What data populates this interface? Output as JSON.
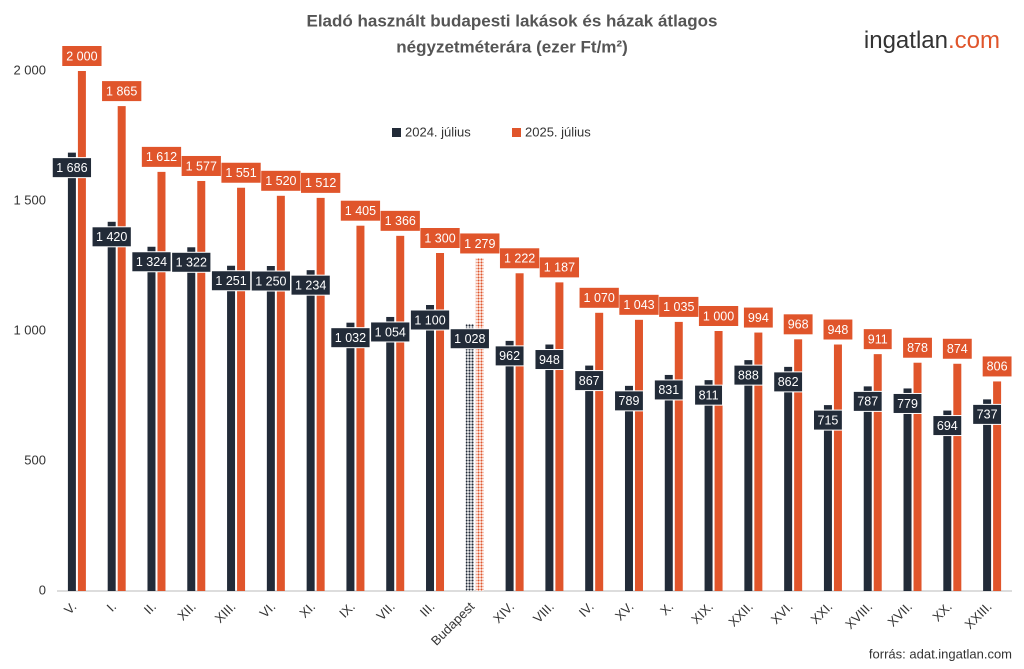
{
  "chart_data": {
    "type": "bar",
    "title": [
      "Eladó használt budapesti lakások és házak átlagos",
      "négyzetméterára (ezer Ft/m²)"
    ],
    "brand": [
      "ingatlan",
      ".com"
    ],
    "source": "forrás: adat.ingatlan.com",
    "categories": [
      "V.",
      "I.",
      "II.",
      "XII.",
      "XIII.",
      "VI.",
      "XI.",
      "IX.",
      "VII.",
      "III.",
      "Budapest",
      "XIV.",
      "VIII.",
      "IV.",
      "XV.",
      "X.",
      "XIX.",
      "XXII.",
      "XVI.",
      "XXI.",
      "XVIII.",
      "XVII.",
      "XX.",
      "XXIII."
    ],
    "pattern_category": "Budapest",
    "series": [
      {
        "name": "2024. július",
        "color": "#222b38",
        "values": [
          1686,
          1420,
          1324,
          1322,
          1251,
          1250,
          1234,
          1032,
          1054,
          1100,
          1028,
          962,
          948,
          867,
          789,
          831,
          811,
          888,
          862,
          715,
          787,
          779,
          694,
          737
        ],
        "value_labels": [
          "1 686",
          "1 420",
          "1 324",
          "1 322",
          "1 251",
          "1 250",
          "1 234",
          "1 032",
          "1 054",
          "1 100",
          "1 028",
          "962",
          "948",
          "867",
          "789",
          "831",
          "811",
          "888",
          "862",
          "715",
          "787",
          "779",
          "694",
          "737"
        ]
      },
      {
        "name": "2025. július",
        "color": "#e0552b",
        "values": [
          2000,
          1865,
          1612,
          1577,
          1551,
          1520,
          1512,
          1405,
          1366,
          1300,
          1279,
          1222,
          1187,
          1070,
          1043,
          1035,
          1000,
          994,
          968,
          948,
          911,
          878,
          874,
          806
        ],
        "value_labels": [
          "2 000",
          "1 865",
          "1 612",
          "1 577",
          "1 551",
          "1 520",
          "1 512",
          "1 405",
          "1 366",
          "1 300",
          "1 279",
          "1 222",
          "1 187",
          "1 070",
          "1 043",
          "1 035",
          "1 000",
          "994",
          "968",
          "948",
          "911",
          "878",
          "874",
          "806"
        ]
      }
    ],
    "ylim": [
      0,
      2000
    ],
    "yticks": [
      0,
      500,
      {
        "value": 1000,
        "label": "1 000"
      },
      {
        "value": 1500,
        "label": "1 500"
      },
      {
        "value": 2000,
        "label": "2 000"
      }
    ],
    "grid": false
  }
}
